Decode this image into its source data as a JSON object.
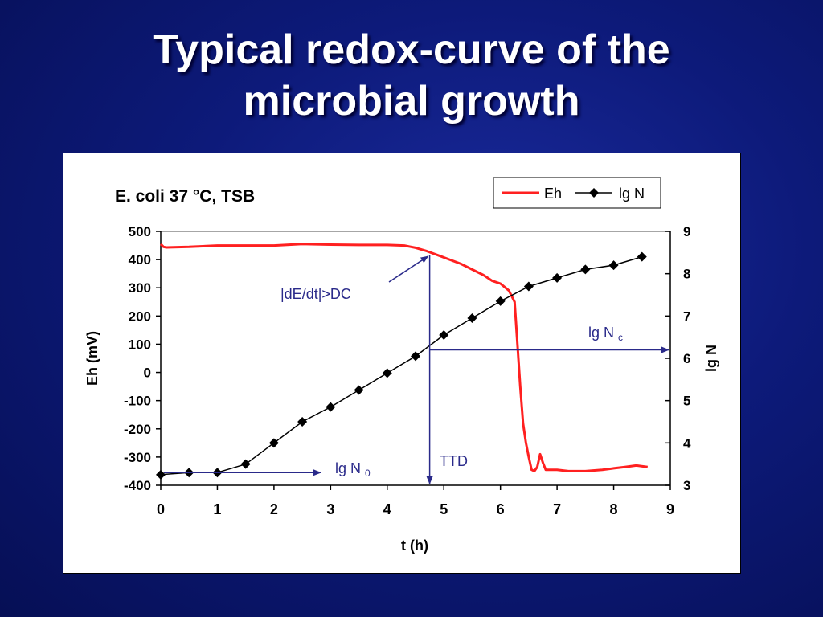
{
  "slide": {
    "title_line1": "Typical redox-curve of the",
    "title_line2": "microbial growth"
  },
  "chart_data": {
    "type": "line",
    "title": "E. coli  37 °C,  TSB",
    "xlabel": "t (h)",
    "ylabel": "Eh (mV)",
    "y2label": "lg N",
    "xlim": [
      0,
      9
    ],
    "ylim": [
      -400,
      500
    ],
    "y2lim": [
      3,
      9
    ],
    "xticks": [
      0,
      1,
      2,
      3,
      4,
      5,
      6,
      7,
      8,
      9
    ],
    "yticks": [
      -400,
      -300,
      -200,
      -100,
      0,
      100,
      200,
      300,
      400,
      500
    ],
    "y2ticks": [
      3,
      4,
      5,
      6,
      7,
      8,
      9
    ],
    "grid": false,
    "legend_position": "top-right",
    "series": [
      {
        "name": "Eh",
        "axis": "left",
        "color": "#ff2020",
        "marker": "none",
        "x": [
          0,
          0.05,
          0.1,
          0.5,
          1.0,
          1.5,
          2.0,
          2.5,
          3.0,
          3.5,
          4.0,
          4.3,
          4.5,
          4.7,
          4.9,
          5.1,
          5.3,
          5.5,
          5.7,
          5.85,
          6.0,
          6.15,
          6.25,
          6.3,
          6.35,
          6.4,
          6.45,
          6.5,
          6.55,
          6.6,
          6.65,
          6.7,
          6.75,
          6.8,
          7.0,
          7.2,
          7.5,
          7.8,
          8.0,
          8.2,
          8.4,
          8.6
        ],
        "y": [
          455,
          445,
          443,
          445,
          450,
          450,
          450,
          455,
          453,
          452,
          452,
          450,
          442,
          430,
          415,
          400,
          385,
          365,
          345,
          325,
          315,
          290,
          250,
          100,
          -50,
          -180,
          -250,
          -300,
          -345,
          -350,
          -335,
          -290,
          -320,
          -345,
          -345,
          -350,
          -350,
          -345,
          -340,
          -335,
          -330,
          -335
        ]
      },
      {
        "name": "lg N",
        "axis": "right",
        "color": "#000000",
        "marker": "diamond",
        "x": [
          0,
          0.5,
          1.0,
          1.5,
          2.0,
          2.5,
          3.0,
          3.5,
          4.0,
          4.5,
          5.0,
          5.5,
          6.0,
          6.5,
          7.0,
          7.5,
          8.0,
          8.5
        ],
        "y": [
          3.25,
          3.3,
          3.3,
          3.5,
          4.0,
          4.5,
          4.85,
          5.25,
          5.65,
          6.05,
          6.55,
          6.95,
          7.35,
          7.7,
          7.9,
          8.1,
          8.2,
          8.4
        ]
      }
    ],
    "annotations": {
      "dedt": "|dE/dt|>DC",
      "lgnc": "lg N",
      "lgnc_sub": "c",
      "lgn0": "lg N",
      "lgn0_sub": "0",
      "ttd": "TTD",
      "ttd_x": 4.75,
      "lgnc_value": 6.2,
      "lgn0_value": 3.3
    }
  }
}
